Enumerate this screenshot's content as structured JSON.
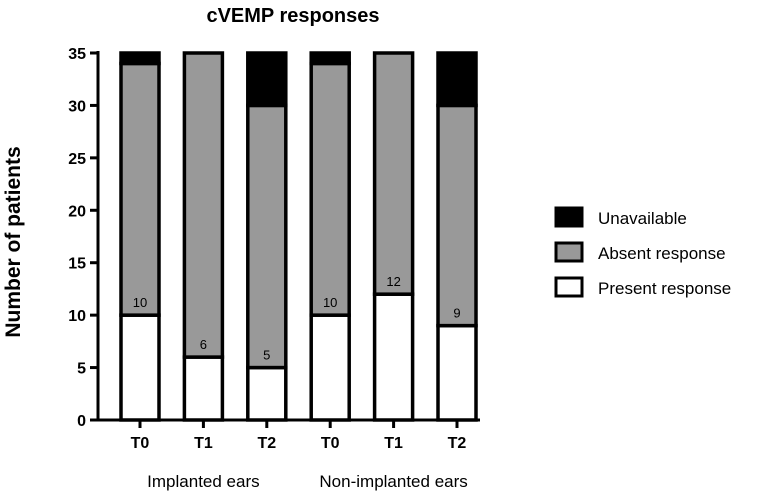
{
  "chart_data": {
    "type": "bar",
    "stacked": true,
    "title": "cVEMP responses",
    "xlabel": "",
    "ylabel": "Number of patients",
    "ylim": [
      0,
      35
    ],
    "yticks": [
      0,
      5,
      10,
      15,
      20,
      25,
      30,
      35
    ],
    "categories": [
      "T0",
      "T1",
      "T2",
      "T0",
      "T1",
      "T2"
    ],
    "groups": [
      {
        "label": "Implanted ears",
        "categories": [
          0,
          1,
          2
        ]
      },
      {
        "label": "Non-implanted ears",
        "categories": [
          3,
          4,
          5
        ]
      }
    ],
    "series": [
      {
        "name": "Present response",
        "color": "#ffffff",
        "values": [
          10,
          6,
          5,
          10,
          12,
          9
        ]
      },
      {
        "name": "Absent response",
        "color": "#999999",
        "values": [
          24,
          29,
          25,
          24,
          23,
          21
        ]
      },
      {
        "name": "Unavailable",
        "color": "#000000",
        "values": [
          1,
          0,
          5,
          1,
          0,
          5
        ]
      }
    ],
    "data_labels": [
      "10",
      "6",
      "5",
      "10",
      "12",
      "9"
    ],
    "legend": [
      "Unavailable",
      "Absent response",
      "Present response"
    ],
    "legend_position": "right"
  }
}
